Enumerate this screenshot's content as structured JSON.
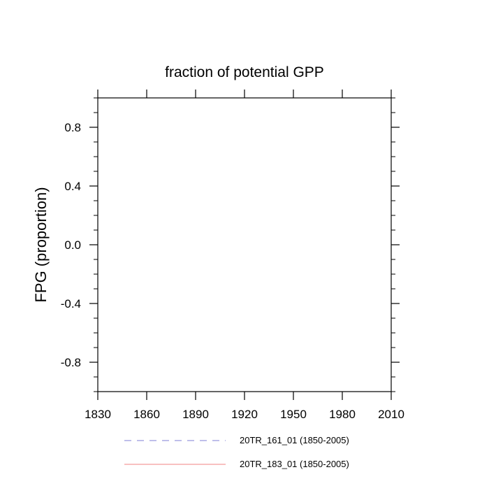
{
  "chart_data": {
    "type": "line",
    "title": "fraction of potential GPP",
    "xlabel": "",
    "ylabel": "FPG  (proportion)",
    "xlim": [
      1830,
      2010
    ],
    "ylim": [
      -1.0,
      1.0
    ],
    "x_ticks": [
      1830,
      1860,
      1890,
      1920,
      1950,
      1980,
      2010
    ],
    "x_tick_labels": [
      "1830",
      "1860",
      "1890",
      "1920",
      "1950",
      "1980",
      "2010"
    ],
    "x_minor_step": null,
    "y_ticks": [
      -0.8,
      -0.4,
      0.0,
      0.4,
      0.8
    ],
    "y_tick_labels": [
      "-0.8",
      "-0.4",
      "0.0",
      "0.4",
      "0.8"
    ],
    "y_minor_step": 0.1,
    "grid": false,
    "legend_position": "bottom",
    "series": [
      {
        "name": "20TR_161_01 (1850-2005)",
        "color": "#7f7fd4",
        "line_style": "dashed",
        "x": [],
        "y": []
      },
      {
        "name": "20TR_183_01 (1850-2005)",
        "color": "#f08080",
        "line_style": "solid",
        "x": [],
        "y": []
      }
    ]
  }
}
